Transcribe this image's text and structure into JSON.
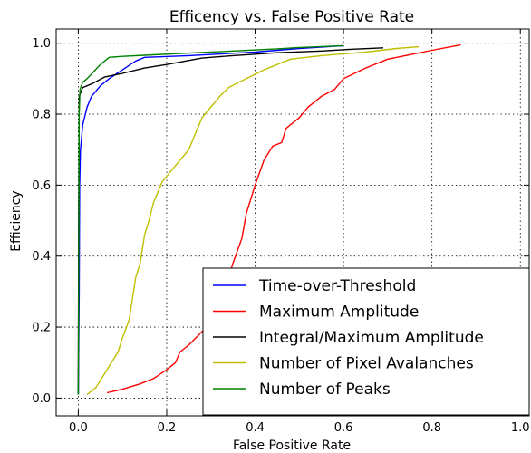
{
  "chart_data": {
    "type": "line",
    "title": "Efficency vs. False Positive Rate",
    "xlabel": "False Positive Rate",
    "ylabel": "Efficiency",
    "xlim": [
      -0.05,
      1.02
    ],
    "ylim": [
      -0.05,
      1.04
    ],
    "xticks": [
      "0.0",
      "0.2",
      "0.4",
      "0.6",
      "0.8",
      "1.0"
    ],
    "yticks": [
      "0.0",
      "0.2",
      "0.4",
      "0.6",
      "0.8",
      "1.0"
    ],
    "grid": true,
    "legend_position": "lower-right",
    "series": [
      {
        "name": "Time-over-Threshold",
        "color": "#0000ff",
        "points": [
          [
            0.0,
            0.01
          ],
          [
            0.002,
            0.3
          ],
          [
            0.003,
            0.6
          ],
          [
            0.005,
            0.7
          ],
          [
            0.01,
            0.77
          ],
          [
            0.02,
            0.82
          ],
          [
            0.03,
            0.85
          ],
          [
            0.05,
            0.88
          ],
          [
            0.07,
            0.9
          ],
          [
            0.1,
            0.925
          ],
          [
            0.13,
            0.95
          ],
          [
            0.15,
            0.96
          ],
          [
            0.25,
            0.965
          ],
          [
            0.4,
            0.975
          ],
          [
            0.5,
            0.985
          ],
          [
            0.6,
            0.993
          ]
        ]
      },
      {
        "name": "Maximum Amplitude",
        "color": "#ff0000",
        "points": [
          [
            0.065,
            0.015
          ],
          [
            0.1,
            0.025
          ],
          [
            0.14,
            0.04
          ],
          [
            0.17,
            0.055
          ],
          [
            0.2,
            0.08
          ],
          [
            0.22,
            0.1
          ],
          [
            0.23,
            0.13
          ],
          [
            0.25,
            0.15
          ],
          [
            0.27,
            0.175
          ],
          [
            0.29,
            0.2
          ],
          [
            0.31,
            0.25
          ],
          [
            0.33,
            0.3
          ],
          [
            0.35,
            0.38
          ],
          [
            0.37,
            0.45
          ],
          [
            0.38,
            0.52
          ],
          [
            0.4,
            0.6
          ],
          [
            0.42,
            0.67
          ],
          [
            0.44,
            0.71
          ],
          [
            0.46,
            0.72
          ],
          [
            0.47,
            0.76
          ],
          [
            0.5,
            0.79
          ],
          [
            0.52,
            0.82
          ],
          [
            0.55,
            0.85
          ],
          [
            0.58,
            0.87
          ],
          [
            0.6,
            0.9
          ],
          [
            0.65,
            0.93
          ],
          [
            0.7,
            0.955
          ],
          [
            0.76,
            0.97
          ],
          [
            0.8,
            0.98
          ],
          [
            0.865,
            0.995
          ]
        ]
      },
      {
        "name": "Integral/Maximum Amplitude",
        "color": "#000000",
        "points": [
          [
            0.0,
            0.01
          ],
          [
            0.001,
            0.5
          ],
          [
            0.002,
            0.85
          ],
          [
            0.01,
            0.875
          ],
          [
            0.03,
            0.885
          ],
          [
            0.06,
            0.905
          ],
          [
            0.1,
            0.915
          ],
          [
            0.15,
            0.93
          ],
          [
            0.2,
            0.94
          ],
          [
            0.28,
            0.958
          ],
          [
            0.35,
            0.965
          ],
          [
            0.45,
            0.973
          ],
          [
            0.55,
            0.978
          ],
          [
            0.62,
            0.983
          ],
          [
            0.69,
            0.987
          ]
        ]
      },
      {
        "name": "Number of Pixel Avalanches",
        "color": "#bfbf00",
        "points": [
          [
            0.02,
            0.01
          ],
          [
            0.04,
            0.03
          ],
          [
            0.06,
            0.07
          ],
          [
            0.075,
            0.1
          ],
          [
            0.09,
            0.13
          ],
          [
            0.1,
            0.17
          ],
          [
            0.115,
            0.22
          ],
          [
            0.12,
            0.26
          ],
          [
            0.125,
            0.3
          ],
          [
            0.13,
            0.34
          ],
          [
            0.14,
            0.38
          ],
          [
            0.145,
            0.42
          ],
          [
            0.15,
            0.46
          ],
          [
            0.16,
            0.5
          ],
          [
            0.17,
            0.55
          ],
          [
            0.18,
            0.58
          ],
          [
            0.19,
            0.61
          ],
          [
            0.21,
            0.64
          ],
          [
            0.23,
            0.67
          ],
          [
            0.25,
            0.7
          ],
          [
            0.26,
            0.73
          ],
          [
            0.27,
            0.76
          ],
          [
            0.28,
            0.79
          ],
          [
            0.3,
            0.82
          ],
          [
            0.32,
            0.85
          ],
          [
            0.34,
            0.875
          ],
          [
            0.38,
            0.9
          ],
          [
            0.42,
            0.925
          ],
          [
            0.46,
            0.945
          ],
          [
            0.48,
            0.955
          ],
          [
            0.55,
            0.965
          ],
          [
            0.65,
            0.975
          ],
          [
            0.72,
            0.985
          ],
          [
            0.77,
            0.99
          ]
        ]
      },
      {
        "name": "Number of Peaks",
        "color": "#008000",
        "points": [
          [
            0.0,
            0.01
          ],
          [
            0.001,
            0.4
          ],
          [
            0.002,
            0.8
          ],
          [
            0.004,
            0.87
          ],
          [
            0.01,
            0.89
          ],
          [
            0.02,
            0.9
          ],
          [
            0.035,
            0.92
          ],
          [
            0.05,
            0.94
          ],
          [
            0.07,
            0.96
          ],
          [
            0.1,
            0.963
          ],
          [
            0.15,
            0.966
          ],
          [
            0.25,
            0.972
          ],
          [
            0.35,
            0.978
          ],
          [
            0.45,
            0.984
          ],
          [
            0.5,
            0.988
          ],
          [
            0.6,
            0.993
          ]
        ]
      }
    ]
  }
}
